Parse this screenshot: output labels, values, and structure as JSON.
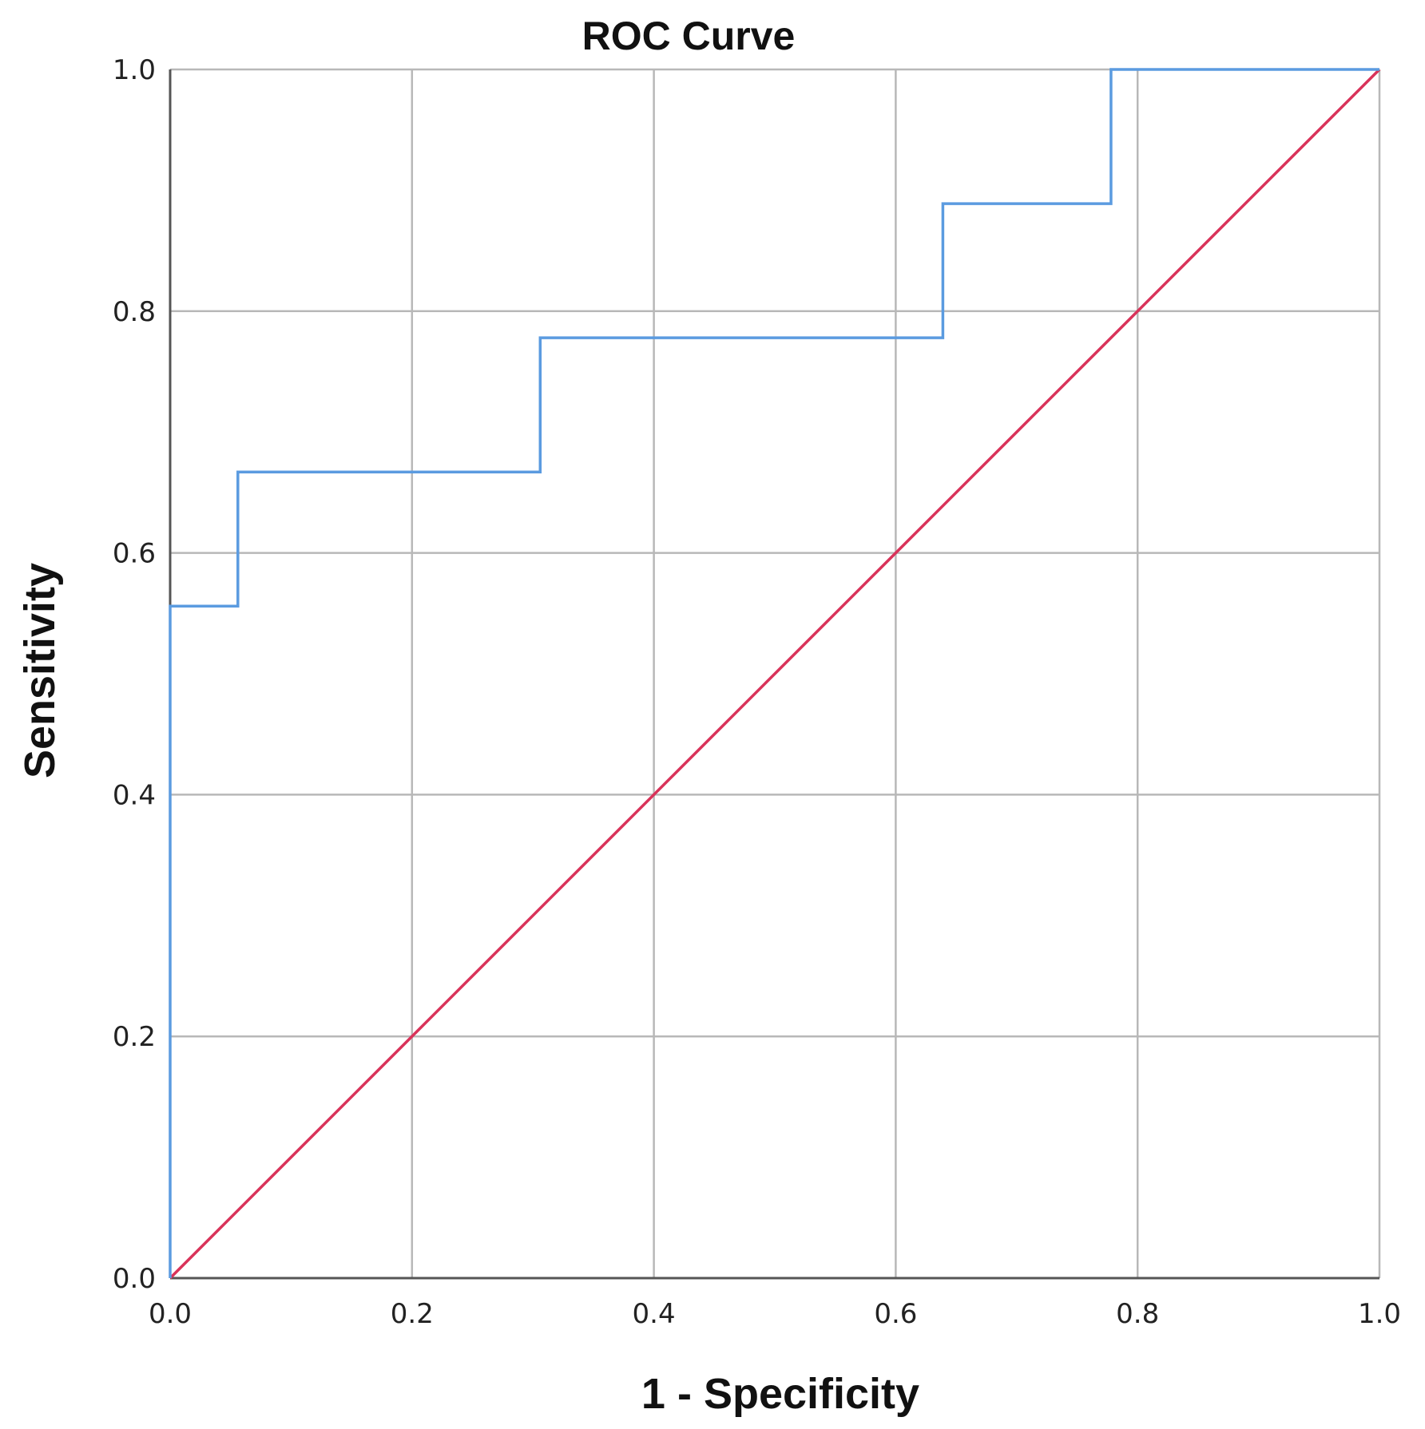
{
  "chart_data": {
    "type": "line",
    "title": "ROC Curve",
    "xlabel": "1 - Specificity",
    "ylabel": "Sensitivity",
    "xlim": [
      0,
      1
    ],
    "ylim": [
      0,
      1
    ],
    "x_ticks": [
      "0.0",
      "0.2",
      "0.4",
      "0.6",
      "0.8",
      "1.0"
    ],
    "y_ticks": [
      "0.0",
      "0.2",
      "0.4",
      "0.6",
      "0.8",
      "1.0"
    ],
    "grid": true,
    "legend": "none",
    "series": [
      {
        "color": "#5b9be0",
        "step": true,
        "x": [
          0.0,
          0.0,
          0.056,
          0.056,
          0.306,
          0.306,
          0.639,
          0.639,
          0.778,
          0.778,
          1.0
        ],
        "y": [
          0.0,
          0.556,
          0.556,
          0.667,
          0.667,
          0.778,
          0.778,
          0.889,
          0.889,
          1.0,
          1.0
        ]
      },
      {
        "color": "#d9335a",
        "step": false,
        "x": [
          0.0,
          1.0
        ],
        "y": [
          0.0,
          1.0
        ]
      }
    ]
  }
}
